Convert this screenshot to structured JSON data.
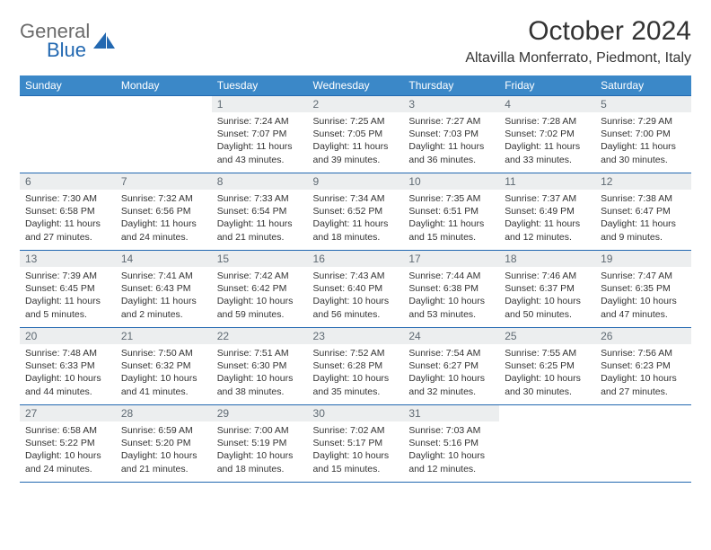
{
  "brand": {
    "part1": "General",
    "part2": "Blue"
  },
  "title": "October 2024",
  "location": "Altavilla Monferrato, Piedmont, Italy",
  "colors": {
    "header_bg": "#3b88c8",
    "border": "#2268b1",
    "daynum_bg": "#eceeef",
    "text": "#333333"
  },
  "weekdays": [
    "Sunday",
    "Monday",
    "Tuesday",
    "Wednesday",
    "Thursday",
    "Friday",
    "Saturday"
  ],
  "weeks": [
    [
      {
        "day": "",
        "lines": []
      },
      {
        "day": "",
        "lines": []
      },
      {
        "day": "1",
        "lines": [
          "Sunrise: 7:24 AM",
          "Sunset: 7:07 PM",
          "Daylight: 11 hours and 43 minutes."
        ]
      },
      {
        "day": "2",
        "lines": [
          "Sunrise: 7:25 AM",
          "Sunset: 7:05 PM",
          "Daylight: 11 hours and 39 minutes."
        ]
      },
      {
        "day": "3",
        "lines": [
          "Sunrise: 7:27 AM",
          "Sunset: 7:03 PM",
          "Daylight: 11 hours and 36 minutes."
        ]
      },
      {
        "day": "4",
        "lines": [
          "Sunrise: 7:28 AM",
          "Sunset: 7:02 PM",
          "Daylight: 11 hours and 33 minutes."
        ]
      },
      {
        "day": "5",
        "lines": [
          "Sunrise: 7:29 AM",
          "Sunset: 7:00 PM",
          "Daylight: 11 hours and 30 minutes."
        ]
      }
    ],
    [
      {
        "day": "6",
        "lines": [
          "Sunrise: 7:30 AM",
          "Sunset: 6:58 PM",
          "Daylight: 11 hours and 27 minutes."
        ]
      },
      {
        "day": "7",
        "lines": [
          "Sunrise: 7:32 AM",
          "Sunset: 6:56 PM",
          "Daylight: 11 hours and 24 minutes."
        ]
      },
      {
        "day": "8",
        "lines": [
          "Sunrise: 7:33 AM",
          "Sunset: 6:54 PM",
          "Daylight: 11 hours and 21 minutes."
        ]
      },
      {
        "day": "9",
        "lines": [
          "Sunrise: 7:34 AM",
          "Sunset: 6:52 PM",
          "Daylight: 11 hours and 18 minutes."
        ]
      },
      {
        "day": "10",
        "lines": [
          "Sunrise: 7:35 AM",
          "Sunset: 6:51 PM",
          "Daylight: 11 hours and 15 minutes."
        ]
      },
      {
        "day": "11",
        "lines": [
          "Sunrise: 7:37 AM",
          "Sunset: 6:49 PM",
          "Daylight: 11 hours and 12 minutes."
        ]
      },
      {
        "day": "12",
        "lines": [
          "Sunrise: 7:38 AM",
          "Sunset: 6:47 PM",
          "Daylight: 11 hours and 9 minutes."
        ]
      }
    ],
    [
      {
        "day": "13",
        "lines": [
          "Sunrise: 7:39 AM",
          "Sunset: 6:45 PM",
          "Daylight: 11 hours and 5 minutes."
        ]
      },
      {
        "day": "14",
        "lines": [
          "Sunrise: 7:41 AM",
          "Sunset: 6:43 PM",
          "Daylight: 11 hours and 2 minutes."
        ]
      },
      {
        "day": "15",
        "lines": [
          "Sunrise: 7:42 AM",
          "Sunset: 6:42 PM",
          "Daylight: 10 hours and 59 minutes."
        ]
      },
      {
        "day": "16",
        "lines": [
          "Sunrise: 7:43 AM",
          "Sunset: 6:40 PM",
          "Daylight: 10 hours and 56 minutes."
        ]
      },
      {
        "day": "17",
        "lines": [
          "Sunrise: 7:44 AM",
          "Sunset: 6:38 PM",
          "Daylight: 10 hours and 53 minutes."
        ]
      },
      {
        "day": "18",
        "lines": [
          "Sunrise: 7:46 AM",
          "Sunset: 6:37 PM",
          "Daylight: 10 hours and 50 minutes."
        ]
      },
      {
        "day": "19",
        "lines": [
          "Sunrise: 7:47 AM",
          "Sunset: 6:35 PM",
          "Daylight: 10 hours and 47 minutes."
        ]
      }
    ],
    [
      {
        "day": "20",
        "lines": [
          "Sunrise: 7:48 AM",
          "Sunset: 6:33 PM",
          "Daylight: 10 hours and 44 minutes."
        ]
      },
      {
        "day": "21",
        "lines": [
          "Sunrise: 7:50 AM",
          "Sunset: 6:32 PM",
          "Daylight: 10 hours and 41 minutes."
        ]
      },
      {
        "day": "22",
        "lines": [
          "Sunrise: 7:51 AM",
          "Sunset: 6:30 PM",
          "Daylight: 10 hours and 38 minutes."
        ]
      },
      {
        "day": "23",
        "lines": [
          "Sunrise: 7:52 AM",
          "Sunset: 6:28 PM",
          "Daylight: 10 hours and 35 minutes."
        ]
      },
      {
        "day": "24",
        "lines": [
          "Sunrise: 7:54 AM",
          "Sunset: 6:27 PM",
          "Daylight: 10 hours and 32 minutes."
        ]
      },
      {
        "day": "25",
        "lines": [
          "Sunrise: 7:55 AM",
          "Sunset: 6:25 PM",
          "Daylight: 10 hours and 30 minutes."
        ]
      },
      {
        "day": "26",
        "lines": [
          "Sunrise: 7:56 AM",
          "Sunset: 6:23 PM",
          "Daylight: 10 hours and 27 minutes."
        ]
      }
    ],
    [
      {
        "day": "27",
        "lines": [
          "Sunrise: 6:58 AM",
          "Sunset: 5:22 PM",
          "Daylight: 10 hours and 24 minutes."
        ]
      },
      {
        "day": "28",
        "lines": [
          "Sunrise: 6:59 AM",
          "Sunset: 5:20 PM",
          "Daylight: 10 hours and 21 minutes."
        ]
      },
      {
        "day": "29",
        "lines": [
          "Sunrise: 7:00 AM",
          "Sunset: 5:19 PM",
          "Daylight: 10 hours and 18 minutes."
        ]
      },
      {
        "day": "30",
        "lines": [
          "Sunrise: 7:02 AM",
          "Sunset: 5:17 PM",
          "Daylight: 10 hours and 15 minutes."
        ]
      },
      {
        "day": "31",
        "lines": [
          "Sunrise: 7:03 AM",
          "Sunset: 5:16 PM",
          "Daylight: 10 hours and 12 minutes."
        ]
      },
      {
        "day": "",
        "lines": []
      },
      {
        "day": "",
        "lines": []
      }
    ]
  ]
}
